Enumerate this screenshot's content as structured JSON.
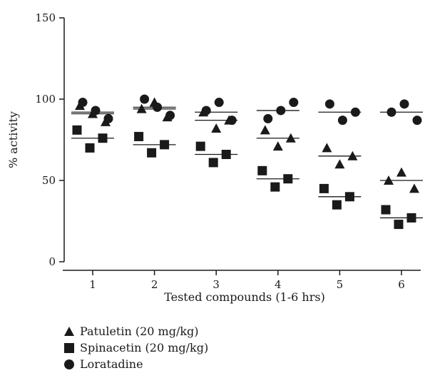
{
  "chart_data": {
    "type": "scatter",
    "title": "",
    "xlabel": "Tested compounds (1-6 hrs)",
    "ylabel": "% activity",
    "ylim": [
      0,
      150
    ],
    "yticks": [
      0,
      50,
      100,
      150
    ],
    "categories": [
      "1",
      "2",
      "3",
      "4",
      "5",
      "6"
    ],
    "grid": false,
    "legend_position": "bottom-left",
    "series": [
      {
        "name": "Patuletin (20 mg/kg)",
        "marker": "triangle",
        "color": "#1a1a1a",
        "points": [
          [
            [
              96,
              91,
              86
            ],
            91
          ],
          [
            [
              94,
              98,
              89
            ],
            94
          ],
          [
            [
              92,
              82,
              87
            ],
            87
          ],
          [
            [
              81,
              71,
              76
            ],
            76
          ],
          [
            [
              70,
              60,
              65
            ],
            65
          ],
          [
            [
              50,
              55,
              45
            ],
            50
          ]
        ]
      },
      {
        "name": "Spinacetin (20 mg/kg)",
        "marker": "square",
        "color": "#1a1a1a",
        "points": [
          [
            [
              81,
              70,
              76
            ],
            76
          ],
          [
            [
              77,
              67,
              72
            ],
            72
          ],
          [
            [
              71,
              61,
              66
            ],
            66
          ],
          [
            [
              56,
              46,
              51
            ],
            51
          ],
          [
            [
              45,
              35,
              40
            ],
            40
          ],
          [
            [
              32,
              23,
              27
            ],
            27
          ]
        ]
      },
      {
        "name": "Loratadine",
        "marker": "circle",
        "color": "#1a1a1a",
        "points": [
          [
            [
              98,
              93,
              88
            ],
            92
          ],
          [
            [
              100,
              95,
              90
            ],
            95
          ],
          [
            [
              93,
              98,
              87
            ],
            92
          ],
          [
            [
              88,
              93,
              98
            ],
            93
          ],
          [
            [
              97,
              87,
              92
            ],
            92
          ],
          [
            [
              92,
              97,
              87
            ],
            92
          ]
        ]
      }
    ]
  }
}
